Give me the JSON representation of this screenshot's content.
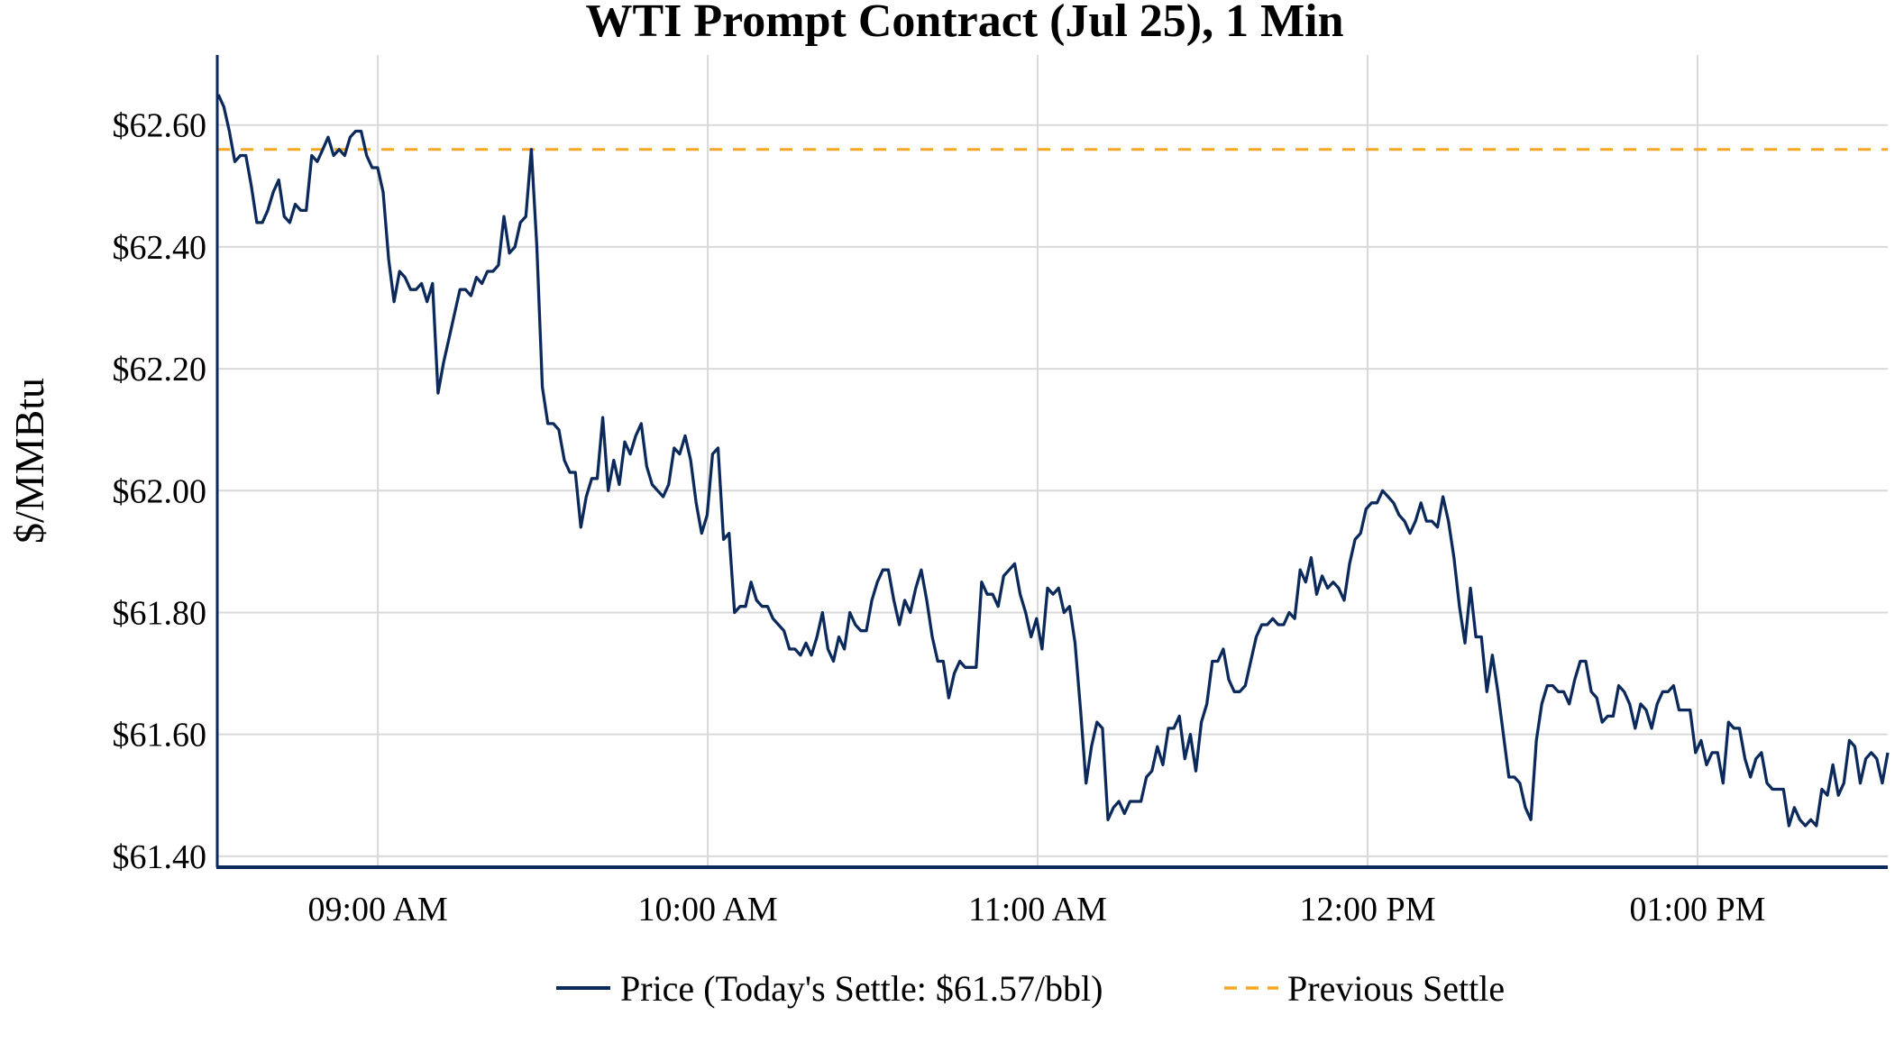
{
  "chart_data": {
    "type": "line",
    "title": "WTI Prompt Contract (Jul 25), 1 Min",
    "xlabel": "",
    "ylabel": "$/MMBtu",
    "x_start": "08:31",
    "x_interval_min": 1,
    "xlim": [
      "08:30.8",
      "13:34.6"
    ],
    "ylim": [
      61.382,
      62.715
    ],
    "yticks": [
      61.4,
      61.6,
      61.8,
      62.0,
      62.2,
      62.4,
      62.6
    ],
    "ytick_labels": [
      "$61.40",
      "$61.60",
      "$61.80",
      "$62.00",
      "$62.20",
      "$62.40",
      "$62.60"
    ],
    "xticks": [
      "09:00",
      "10:00",
      "11:00",
      "12:00",
      "13:00"
    ],
    "xtick_labels": [
      "09:00 AM",
      "10:00 AM",
      "11:00 AM",
      "12:00 PM",
      "01:00 PM"
    ],
    "grid": true,
    "legend_position": "bottom-center",
    "series": [
      {
        "name": "Price (Today's Settle: $61.57/bbl)",
        "color": "#0b2a5b",
        "style": "solid",
        "values": [
          62.65,
          62.63,
          62.59,
          62.54,
          62.55,
          62.55,
          62.5,
          62.44,
          62.44,
          62.46,
          62.49,
          62.51,
          62.45,
          62.44,
          62.47,
          62.46,
          62.46,
          62.55,
          62.54,
          62.56,
          62.58,
          62.55,
          62.56,
          62.55,
          62.58,
          62.59,
          62.59,
          62.55,
          62.53,
          62.53,
          62.49,
          62.38,
          62.31,
          62.36,
          62.35,
          62.33,
          62.33,
          62.34,
          62.31,
          62.34,
          62.16,
          62.21,
          62.25,
          62.29,
          62.33,
          62.33,
          62.32,
          62.35,
          62.34,
          62.36,
          62.36,
          62.37,
          62.45,
          62.39,
          62.4,
          62.44,
          62.45,
          62.56,
          62.4,
          62.17,
          62.11,
          62.11,
          62.1,
          62.05,
          62.03,
          62.03,
          61.94,
          61.99,
          62.02,
          62.02,
          62.12,
          62.0,
          62.05,
          62.01,
          62.08,
          62.06,
          62.09,
          62.11,
          62.04,
          62.01,
          62.0,
          61.99,
          62.01,
          62.07,
          62.06,
          62.09,
          62.05,
          61.98,
          61.93,
          61.96,
          62.06,
          62.07,
          61.92,
          61.93,
          61.8,
          61.81,
          61.81,
          61.85,
          61.82,
          61.81,
          61.81,
          61.79,
          61.78,
          61.77,
          61.74,
          61.74,
          61.73,
          61.75,
          61.73,
          61.76,
          61.8,
          61.74,
          61.72,
          61.76,
          61.74,
          61.8,
          61.78,
          61.77,
          61.77,
          61.82,
          61.85,
          61.87,
          61.87,
          61.82,
          61.78,
          61.82,
          61.8,
          61.84,
          61.87,
          61.82,
          61.76,
          61.72,
          61.72,
          61.66,
          61.7,
          61.72,
          61.71,
          61.71,
          61.71,
          61.85,
          61.83,
          61.83,
          61.81,
          61.86,
          61.87,
          61.88,
          61.83,
          61.8,
          61.76,
          61.79,
          61.74,
          61.84,
          61.83,
          61.84,
          61.8,
          61.81,
          61.75,
          61.64,
          61.52,
          61.58,
          61.62,
          61.61,
          61.46,
          61.48,
          61.49,
          61.47,
          61.49,
          61.49,
          61.49,
          61.53,
          61.54,
          61.58,
          61.55,
          61.61,
          61.61,
          61.63,
          61.56,
          61.6,
          61.54,
          61.62,
          61.65,
          61.72,
          61.72,
          61.74,
          61.69,
          61.67,
          61.67,
          61.68,
          61.72,
          61.76,
          61.78,
          61.78,
          61.79,
          61.78,
          61.78,
          61.8,
          61.79,
          61.87,
          61.85,
          61.89,
          61.83,
          61.86,
          61.84,
          61.85,
          61.84,
          61.82,
          61.88,
          61.92,
          61.93,
          61.97,
          61.98,
          61.98,
          62.0,
          61.99,
          61.98,
          61.96,
          61.95,
          61.93,
          61.95,
          61.98,
          61.95,
          61.95,
          61.94,
          61.99,
          61.95,
          61.89,
          61.81,
          61.75,
          61.84,
          61.76,
          61.76,
          61.67,
          61.73,
          61.67,
          61.6,
          61.53,
          61.53,
          61.52,
          61.48,
          61.46,
          61.59,
          61.65,
          61.68,
          61.68,
          61.67,
          61.67,
          61.65,
          61.69,
          61.72,
          61.72,
          61.67,
          61.66,
          61.62,
          61.63,
          61.63,
          61.68,
          61.67,
          61.65,
          61.61,
          61.65,
          61.64,
          61.61,
          61.65,
          61.67,
          61.67,
          61.68,
          61.64,
          61.64,
          61.64,
          61.57,
          61.59,
          61.55,
          61.57,
          61.57,
          61.52,
          61.62,
          61.61,
          61.61,
          61.56,
          61.53,
          61.56,
          61.57,
          61.52,
          61.51,
          61.51,
          61.51,
          61.45,
          61.48,
          61.46,
          61.45,
          61.46,
          61.45,
          61.51,
          61.5,
          61.55,
          61.5,
          61.52,
          61.59,
          61.58,
          61.52,
          61.56,
          61.57,
          61.56,
          61.52,
          61.57
        ]
      },
      {
        "name": "Previous Settle",
        "color": "#f5a623",
        "style": "dashed",
        "values": [
          62.56
        ]
      }
    ]
  }
}
